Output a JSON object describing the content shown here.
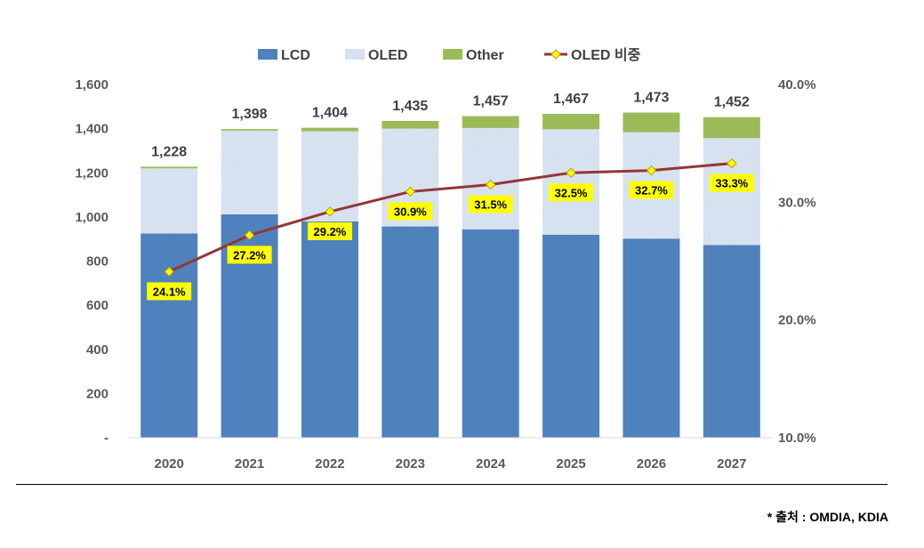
{
  "chart_data": {
    "type": "bar",
    "stacked": true,
    "categories": [
      "2020",
      "2021",
      "2022",
      "2023",
      "2024",
      "2025",
      "2026",
      "2027"
    ],
    "series": [
      {
        "name": "LCD",
        "values": [
          925,
          1012,
          980,
          957,
          944,
          920,
          902,
          873
        ],
        "color": "#4F81BD"
      },
      {
        "name": "OLED",
        "values": [
          295,
          379,
          408,
          443,
          459,
          477,
          482,
          484
        ],
        "color": "#DCE6F2"
      },
      {
        "name": "Other",
        "values": [
          8,
          7,
          16,
          35,
          54,
          70,
          89,
          95
        ],
        "color": "#9BBB59"
      }
    ],
    "totals": [
      1228,
      1398,
      1404,
      1435,
      1457,
      1467,
      1473,
      1452
    ],
    "total_labels": [
      "1,228",
      "1,398",
      "1,404",
      "1,435",
      "1,457",
      "1,467",
      "1,473",
      "1,452"
    ],
    "line_series": {
      "name": "OLED 비중",
      "axis": "right",
      "values": [
        24.1,
        27.2,
        29.2,
        30.9,
        31.5,
        32.5,
        32.7,
        33.3
      ],
      "labels": [
        "24.1%",
        "27.2%",
        "29.2%",
        "30.9%",
        "31.5%",
        "32.5%",
        "32.7%",
        "33.3%"
      ],
      "line_color": "#943634",
      "marker_color": "#FFFF00",
      "label_bg": "#FFFF00"
    },
    "y_left": {
      "min": 0,
      "max": 1600,
      "ticks": [
        "-",
        "200",
        "400",
        "600",
        "800",
        "1,000",
        "1,200",
        "1,400",
        "1,600"
      ]
    },
    "y_right": {
      "min": 10,
      "max": 40,
      "ticks": [
        "10.0%",
        "20.0%",
        "30.0%",
        "40.0%"
      ]
    },
    "legend": {
      "position": "top",
      "items": [
        "LCD",
        "OLED",
        "Other",
        "OLED 비중"
      ]
    }
  },
  "source": "* 출처 : OMDIA, KDIA"
}
